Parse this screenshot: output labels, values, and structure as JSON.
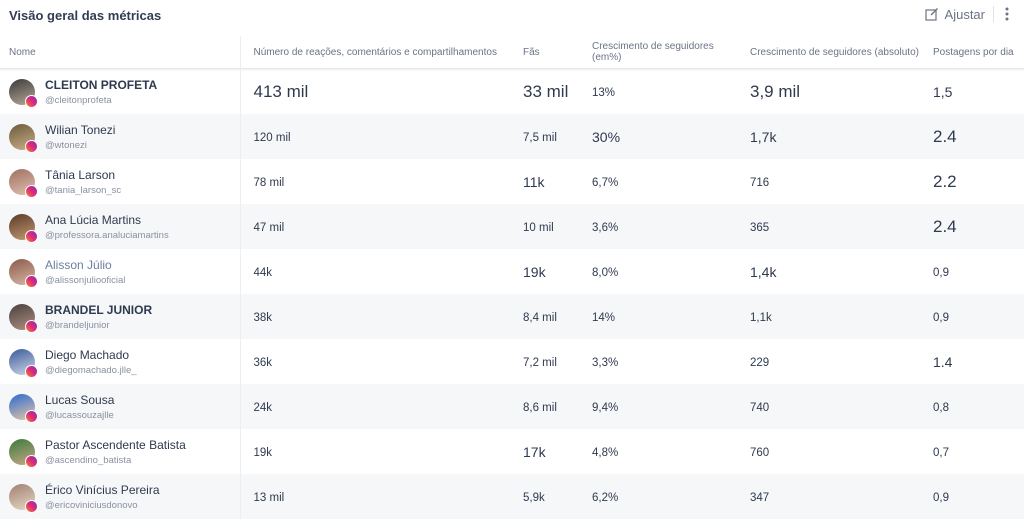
{
  "header": {
    "title": "Visão geral das métricas",
    "action": "Ajustar"
  },
  "table": {
    "columns": [
      "Nome",
      "Número de reações, comentários e compartilhamentos",
      "Fãs",
      "Crescimento de seguidores (em%)",
      "Crescimento de seguidores (absoluto)",
      "Postagens por dia"
    ],
    "rows": [
      [
        "CLEITON PROFETA",
        "@cleitonprofeta",
        "413 mil",
        "33 mil",
        "13%",
        "3,9 mil",
        "1,5"
      ],
      [
        "Wilian Tonezi",
        "@wtonezi",
        "120 mil",
        "7,5 mil",
        "30%",
        "1,7k",
        "2.4"
      ],
      [
        "Tânia Larson",
        "@tania_larson_sc",
        "78 mil",
        "11k",
        "6,7%",
        "716",
        "2.2"
      ],
      [
        "Ana Lúcia Martins",
        "@professora.analuciamartins",
        "47 mil",
        "10 mil",
        "3,6%",
        "365",
        "2.4"
      ],
      [
        "Alisson Júlio",
        "@alissonjuliooficial",
        "44k",
        "19k",
        "8,0%",
        "1,4k",
        "0,9"
      ],
      [
        "BRANDEL JUNIOR",
        "@brandeljunior",
        "38k",
        "8,4 mil",
        "14%",
        "1,1k",
        "0,9"
      ],
      [
        "Diego Machado",
        "@diegomachado.jlle_",
        "36k",
        "7,2 mil",
        "3,3%",
        "229",
        "1.4"
      ],
      [
        "Lucas Sousa",
        "@lucassouzajlle",
        "24k",
        "8,6 mil",
        "9,4%",
        "740",
        "0,8"
      ],
      [
        "Pastor Ascendente Batista",
        "@ascendino_batista",
        "19k",
        "17k",
        "4,8%",
        "760",
        "0,7"
      ],
      [
        "Érico Vinícius Pereira",
        "@ericoviniciusdonovo",
        "13 mil",
        "5,9k",
        "6,2%",
        "347",
        "0,9"
      ]
    ]
  }
}
